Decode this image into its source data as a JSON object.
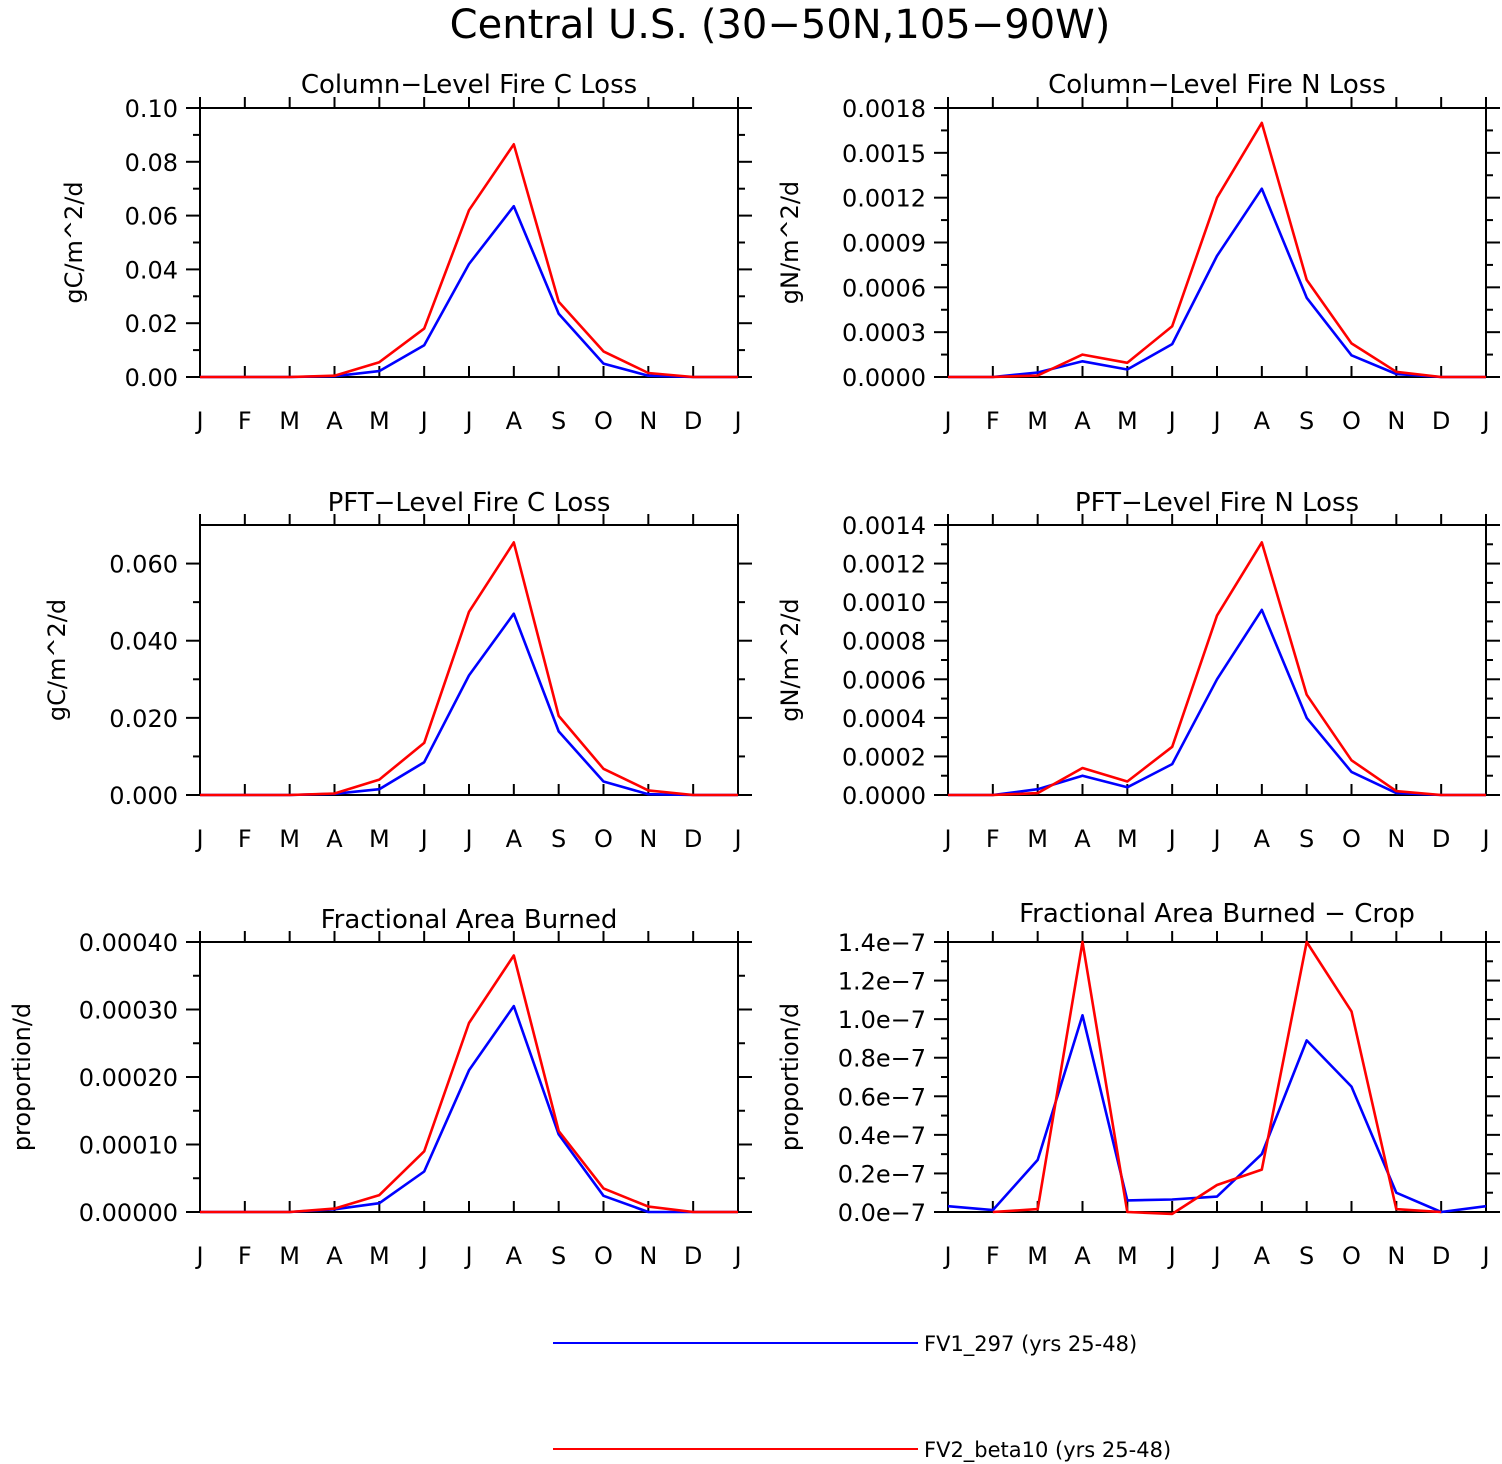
{
  "figure": {
    "title": "Central U.S. (30-50N,105-90W)"
  },
  "months": [
    "J",
    "F",
    "M",
    "A",
    "M",
    "J",
    "J",
    "A",
    "S",
    "O",
    "N",
    "D",
    "J"
  ],
  "legend": [
    {
      "label": "FV1_297 (yrs 25-48)",
      "color": "#0000ff"
    },
    {
      "label": "FV2_beta10 (yrs 25-48)",
      "color": "#ff0000"
    }
  ],
  "chart_data": [
    {
      "type": "line",
      "title": "Column-Level Fire C Loss",
      "ylabel": "gC/m^2/d",
      "ylim": [
        0,
        0.1
      ],
      "yticks": [
        0,
        0.02,
        0.04,
        0.06,
        0.08,
        0.1
      ],
      "yticklabels": [
        "0.00",
        "0.02",
        "0.04",
        "0.06",
        "0.08",
        "0.10"
      ],
      "categories": [
        "J",
        "F",
        "M",
        "A",
        "M",
        "J",
        "J",
        "A",
        "S",
        "O",
        "N",
        "D",
        "J"
      ],
      "series": [
        {
          "name": "FV1_297 (yrs 25-48)",
          "color": "#0000ff",
          "values": [
            0,
            0,
            0,
            0.0003,
            0.0022,
            0.0118,
            0.042,
            0.0635,
            0.0235,
            0.005,
            0.0005,
            0,
            0
          ]
        },
        {
          "name": "FV2_beta10 (yrs 25-48)",
          "color": "#ff0000",
          "values": [
            0,
            0,
            0,
            0.0005,
            0.0055,
            0.018,
            0.062,
            0.0865,
            0.028,
            0.0095,
            0.0015,
            0,
            0
          ]
        }
      ]
    },
    {
      "type": "line",
      "title": "Column-Level Fire N Loss",
      "ylabel": "gN/m^2/d",
      "ylim": [
        0,
        0.0018
      ],
      "yticks": [
        0,
        0.0003,
        0.0006,
        0.0009,
        0.0012,
        0.0015,
        0.0018
      ],
      "yticklabels": [
        "0.0000",
        "0.0003",
        "0.0006",
        "0.0009",
        "0.0012",
        "0.0015",
        "0.0018"
      ],
      "categories": [
        "J",
        "F",
        "M",
        "A",
        "M",
        "J",
        "J",
        "A",
        "S",
        "O",
        "N",
        "D",
        "J"
      ],
      "series": [
        {
          "name": "FV1_297 (yrs 25-48)",
          "color": "#0000ff",
          "values": [
            0,
            0,
            3e-05,
            0.000105,
            5e-05,
            0.00022,
            0.00081,
            0.00126,
            0.00053,
            0.000145,
            2e-05,
            0,
            0
          ]
        },
        {
          "name": "FV2_beta10 (yrs 25-48)",
          "color": "#ff0000",
          "values": [
            0,
            0,
            1e-05,
            0.00015,
            9.5e-05,
            0.00034,
            0.0012,
            0.0017,
            0.00065,
            0.000225,
            3.5e-05,
            0,
            0
          ]
        }
      ]
    },
    {
      "type": "line",
      "title": "PFT-Level Fire C Loss",
      "ylabel": "gC/m^2/d",
      "ylim": [
        0,
        0.07
      ],
      "yticks": [
        0,
        0.02,
        0.04,
        0.06
      ],
      "yticklabels": [
        "0.000",
        "0.020",
        "0.040",
        "0.060"
      ],
      "categories": [
        "J",
        "F",
        "M",
        "A",
        "M",
        "J",
        "J",
        "A",
        "S",
        "O",
        "N",
        "D",
        "J"
      ],
      "series": [
        {
          "name": "FV1_297 (yrs 25-48)",
          "color": "#0000ff",
          "values": [
            0,
            0,
            0,
            0.0003,
            0.0015,
            0.0085,
            0.031,
            0.047,
            0.0165,
            0.0035,
            0.0002,
            0,
            0
          ]
        },
        {
          "name": "FV2_beta10 (yrs 25-48)",
          "color": "#ff0000",
          "values": [
            0,
            0,
            0,
            0.0004,
            0.004,
            0.0135,
            0.0475,
            0.0655,
            0.0205,
            0.0068,
            0.0012,
            0,
            0
          ]
        }
      ]
    },
    {
      "type": "line",
      "title": "PFT-Level Fire N Loss",
      "ylabel": "gN/m^2/d",
      "ylim": [
        0,
        0.0014
      ],
      "yticks": [
        0,
        0.0002,
        0.0004,
        0.0006,
        0.0008,
        0.001,
        0.0012,
        0.0014
      ],
      "yticklabels": [
        "0.0000",
        "0.0002",
        "0.0004",
        "0.0006",
        "0.0008",
        "0.0010",
        "0.0012",
        "0.0014"
      ],
      "categories": [
        "J",
        "F",
        "M",
        "A",
        "M",
        "J",
        "J",
        "A",
        "S",
        "O",
        "N",
        "D",
        "J"
      ],
      "series": [
        {
          "name": "FV1_297 (yrs 25-48)",
          "color": "#0000ff",
          "values": [
            0,
            0,
            3e-05,
            0.0001,
            4e-05,
            0.00016,
            0.0006,
            0.00096,
            0.0004,
            0.00012,
            1e-05,
            0,
            0
          ]
        },
        {
          "name": "FV2_beta10 (yrs 25-48)",
          "color": "#ff0000",
          "values": [
            0,
            0,
            1e-05,
            0.00014,
            7e-05,
            0.00025,
            0.00093,
            0.00131,
            0.00052,
            0.00018,
            2e-05,
            0,
            0
          ]
        }
      ]
    },
    {
      "type": "line",
      "title": "Fractional Area Burned",
      "ylabel": "proportion/d",
      "ylim": [
        0,
        0.0004
      ],
      "yticks": [
        0,
        0.0001,
        0.0002,
        0.0003,
        0.0004
      ],
      "yticklabels": [
        "0.00000",
        "0.00010",
        "0.00020",
        "0.00030",
        "0.00040"
      ],
      "categories": [
        "J",
        "F",
        "M",
        "A",
        "M",
        "J",
        "J",
        "A",
        "S",
        "O",
        "N",
        "D",
        "J"
      ],
      "series": [
        {
          "name": "FV1_297 (yrs 25-48)",
          "color": "#0000ff",
          "values": [
            0,
            0,
            0,
            4e-06,
            1.3e-05,
            6e-05,
            0.00021,
            0.000305,
            0.000115,
            2.4e-05,
            0,
            0,
            0
          ]
        },
        {
          "name": "FV2_beta10 (yrs 25-48)",
          "color": "#ff0000",
          "values": [
            0,
            0,
            0,
            5e-06,
            2.5e-05,
            9e-05,
            0.00028,
            0.00038,
            0.00012,
            3.5e-05,
            8e-06,
            0,
            0
          ]
        }
      ]
    },
    {
      "type": "line",
      "title": "Fractional Area Burned - Crop",
      "ylabel": "proportion/d",
      "ylim": [
        0,
        1.4e-07
      ],
      "yticks": [
        0,
        2e-08,
        4e-08,
        6e-08,
        8e-08,
        1e-07,
        1.2e-07,
        1.4e-07
      ],
      "yticklabels": [
        "0.0e-7",
        "0.2e-7",
        "0.4e-7",
        "0.6e-7",
        "0.8e-7",
        "1.0e-7",
        "1.2e-7",
        "1.4e-7"
      ],
      "categories": [
        "J",
        "F",
        "M",
        "A",
        "M",
        "J",
        "J",
        "A",
        "S",
        "O",
        "N",
        "D",
        "J"
      ],
      "series": [
        {
          "name": "FV1_297 (yrs 25-48)",
          "color": "#0000ff",
          "values": [
            3e-09,
            1e-09,
            2.7e-08,
            1.02e-07,
            6e-09,
            6.5e-09,
            8e-09,
            3e-08,
            8.9e-08,
            6.5e-08,
            1e-08,
            0,
            3e-09
          ]
        },
        {
          "name": "FV2_beta10 (yrs 25-48)",
          "color": "#ff0000",
          "values": [
            null,
            0,
            1.5e-09,
            1.4e-07,
            0,
            -1e-09,
            1.4e-08,
            2.2e-08,
            1.4e-07,
            1.04e-07,
            1.5e-09,
            0,
            null
          ]
        }
      ]
    }
  ]
}
